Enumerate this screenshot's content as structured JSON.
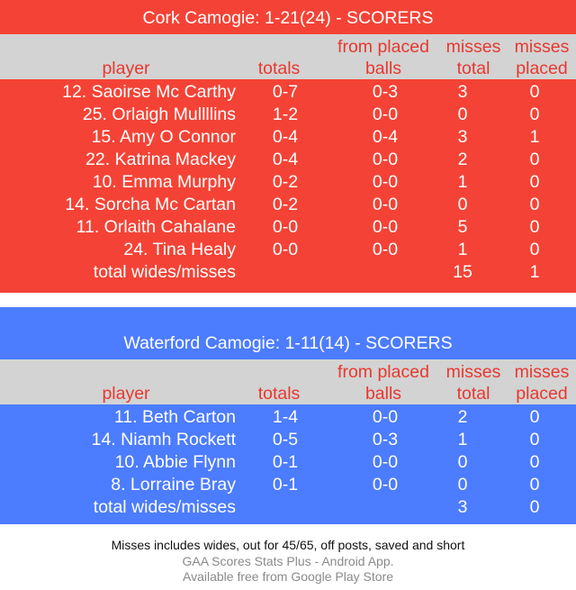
{
  "cork": {
    "title": "Cork Camogie: 1-21(24) - SCORERS",
    "headers": {
      "player": "player",
      "totals": "totals",
      "placed_1": "from placed",
      "placed_2": "balls",
      "mtotal_1": "misses",
      "mtotal_2": "total",
      "mplaced_1": "misses",
      "mplaced_2": "placed"
    },
    "rows": [
      {
        "player": "12. Saoirse Mc Carthy",
        "totals": "0-7",
        "placed": "0-3",
        "misses_total": "3",
        "misses_placed": "0"
      },
      {
        "player": "25. Orlaigh Mullllins",
        "totals": "1-2",
        "placed": "0-0",
        "misses_total": "0",
        "misses_placed": "0"
      },
      {
        "player": "15. Amy O Connor",
        "totals": "0-4",
        "placed": "0-4",
        "misses_total": "3",
        "misses_placed": "1"
      },
      {
        "player": "22. Katrina Mackey",
        "totals": "0-4",
        "placed": "0-0",
        "misses_total": "2",
        "misses_placed": "0"
      },
      {
        "player": "10. Emma Murphy",
        "totals": "0-2",
        "placed": "0-0",
        "misses_total": "1",
        "misses_placed": "0"
      },
      {
        "player": "14. Sorcha Mc Cartan",
        "totals": "0-2",
        "placed": "0-0",
        "misses_total": "0",
        "misses_placed": "0"
      },
      {
        "player": "11. Orlaith Cahalane",
        "totals": "0-0",
        "placed": "0-0",
        "misses_total": "5",
        "misses_placed": "0"
      },
      {
        "player": "24. Tina Healy",
        "totals": "0-0",
        "placed": "0-0",
        "misses_total": "1",
        "misses_placed": "0"
      }
    ],
    "total_row": {
      "label": "total wides/misses",
      "misses_total": "15",
      "misses_placed": "1"
    }
  },
  "waterford": {
    "title": "Waterford  Camogie: 1-11(14) - SCORERS",
    "headers": {
      "player": "player",
      "totals": "totals",
      "placed_1": "from placed",
      "placed_2": "balls",
      "mtotal_1": "misses",
      "mtotal_2": "total",
      "mplaced_1": "misses",
      "mplaced_2": "placed"
    },
    "rows": [
      {
        "player": "11. Beth Carton",
        "totals": "1-4",
        "placed": "0-0",
        "misses_total": "2",
        "misses_placed": "0"
      },
      {
        "player": "14. Niamh Rockett",
        "totals": "0-5",
        "placed": "0-3",
        "misses_total": "1",
        "misses_placed": "0"
      },
      {
        "player": "10. Abbie Flynn",
        "totals": "0-1",
        "placed": "0-0",
        "misses_total": "0",
        "misses_placed": "0"
      },
      {
        "player": "8. Lorraine Bray",
        "totals": "0-1",
        "placed": "0-0",
        "misses_total": "0",
        "misses_placed": "0"
      }
    ],
    "total_row": {
      "label": "total wides/misses",
      "misses_total": "3",
      "misses_placed": "0"
    }
  },
  "footer": {
    "note": "Misses includes wides, out for 45/65, off posts, saved and short",
    "app_line1": "GAA Scores Stats Plus - Android App.",
    "app_line2": "Available free from Google Play Store"
  },
  "colors": {
    "cork": "#f44336",
    "waterford": "#4c7cff",
    "header_bg": "#d3d3d3",
    "header_text": "#e8382f"
  }
}
